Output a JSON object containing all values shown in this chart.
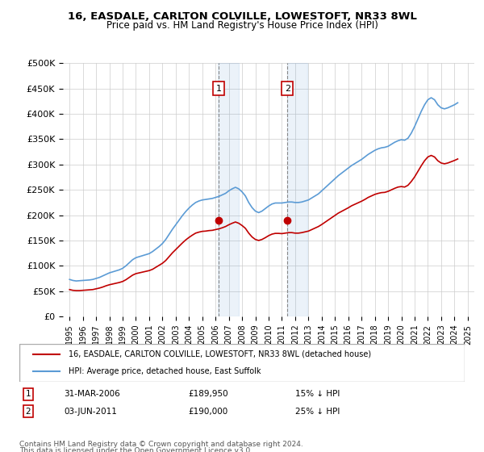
{
  "title": "16, EASDALE, CARLTON COLVILLE, LOWESTOFT, NR33 8WL",
  "subtitle": "Price paid vs. HM Land Registry's House Price Index (HPI)",
  "ylabel_ticks": [
    "£0",
    "£50K",
    "£100K",
    "£150K",
    "£200K",
    "£250K",
    "£300K",
    "£350K",
    "£400K",
    "£450K",
    "£500K"
  ],
  "ylim": [
    0,
    500000
  ],
  "ytick_vals": [
    0,
    50000,
    100000,
    150000,
    200000,
    250000,
    300000,
    350000,
    400000,
    450000,
    500000
  ],
  "hpi_color": "#5b9bd5",
  "price_color": "#c00000",
  "sale1_date_str": "31-MAR-2006",
  "sale1_year": 2006.25,
  "sale1_price": 189950,
  "sale2_date_str": "03-JUN-2011",
  "sale2_year": 2011.42,
  "sale2_price": 190000,
  "legend_label1": "16, EASDALE, CARLTON COLVILLE, LOWESTOFT, NR33 8WL (detached house)",
  "legend_label2": "HPI: Average price, detached house, East Suffolk",
  "annotation1_label": "15% ↓ HPI",
  "annotation2_label": "25% ↓ HPI",
  "footnote1": "Contains HM Land Registry data © Crown copyright and database right 2024.",
  "footnote2": "This data is licensed under the Open Government Licence v3.0.",
  "hpi_data": {
    "years": [
      1995.0,
      1995.25,
      1995.5,
      1995.75,
      1996.0,
      1996.25,
      1996.5,
      1996.75,
      1997.0,
      1997.25,
      1997.5,
      1997.75,
      1998.0,
      1998.25,
      1998.5,
      1998.75,
      1999.0,
      1999.25,
      1999.5,
      1999.75,
      2000.0,
      2000.25,
      2000.5,
      2000.75,
      2001.0,
      2001.25,
      2001.5,
      2001.75,
      2002.0,
      2002.25,
      2002.5,
      2002.75,
      2003.0,
      2003.25,
      2003.5,
      2003.75,
      2004.0,
      2004.25,
      2004.5,
      2004.75,
      2005.0,
      2005.25,
      2005.5,
      2005.75,
      2006.0,
      2006.25,
      2006.5,
      2006.75,
      2007.0,
      2007.25,
      2007.5,
      2007.75,
      2008.0,
      2008.25,
      2008.5,
      2008.75,
      2009.0,
      2009.25,
      2009.5,
      2009.75,
      2010.0,
      2010.25,
      2010.5,
      2010.75,
      2011.0,
      2011.25,
      2011.5,
      2011.75,
      2012.0,
      2012.25,
      2012.5,
      2012.75,
      2013.0,
      2013.25,
      2013.5,
      2013.75,
      2014.0,
      2014.25,
      2014.5,
      2014.75,
      2015.0,
      2015.25,
      2015.5,
      2015.75,
      2016.0,
      2016.25,
      2016.5,
      2016.75,
      2017.0,
      2017.25,
      2017.5,
      2017.75,
      2018.0,
      2018.25,
      2018.5,
      2018.75,
      2019.0,
      2019.25,
      2019.5,
      2019.75,
      2020.0,
      2020.25,
      2020.5,
      2020.75,
      2021.0,
      2021.25,
      2021.5,
      2021.75,
      2022.0,
      2022.25,
      2022.5,
      2022.75,
      2023.0,
      2023.25,
      2023.5,
      2023.75,
      2024.0,
      2024.25
    ],
    "values": [
      73000,
      71000,
      70000,
      70500,
      71000,
      71500,
      72000,
      73000,
      75000,
      77000,
      80000,
      83000,
      86000,
      88000,
      90000,
      92000,
      95000,
      100000,
      106000,
      112000,
      116000,
      118000,
      120000,
      122000,
      124000,
      128000,
      133000,
      138000,
      144000,
      152000,
      162000,
      172000,
      181000,
      190000,
      199000,
      207000,
      214000,
      220000,
      225000,
      228000,
      230000,
      231000,
      232000,
      233000,
      235000,
      237000,
      240000,
      243000,
      248000,
      252000,
      255000,
      252000,
      246000,
      238000,
      225000,
      215000,
      208000,
      205000,
      208000,
      213000,
      218000,
      222000,
      224000,
      224000,
      224000,
      225000,
      226000,
      226000,
      225000,
      225000,
      226000,
      228000,
      230000,
      234000,
      238000,
      242000,
      248000,
      254000,
      260000,
      266000,
      272000,
      278000,
      283000,
      288000,
      293000,
      298000,
      302000,
      306000,
      310000,
      315000,
      320000,
      324000,
      328000,
      331000,
      333000,
      334000,
      336000,
      340000,
      344000,
      347000,
      349000,
      348000,
      352000,
      362000,
      375000,
      390000,
      405000,
      418000,
      428000,
      432000,
      428000,
      418000,
      412000,
      410000,
      412000,
      415000,
      418000,
      422000
    ]
  },
  "price_data": {
    "years": [
      1995.0,
      1995.25,
      1995.5,
      1995.75,
      1996.0,
      1996.25,
      1996.5,
      1996.75,
      1997.0,
      1997.25,
      1997.5,
      1997.75,
      1998.0,
      1998.25,
      1998.5,
      1998.75,
      1999.0,
      1999.25,
      1999.5,
      1999.75,
      2000.0,
      2000.25,
      2000.5,
      2000.75,
      2001.0,
      2001.25,
      2001.5,
      2001.75,
      2002.0,
      2002.25,
      2002.5,
      2002.75,
      2003.0,
      2003.25,
      2003.5,
      2003.75,
      2004.0,
      2004.25,
      2004.5,
      2004.75,
      2005.0,
      2005.25,
      2005.5,
      2005.75,
      2006.0,
      2006.25,
      2006.5,
      2006.75,
      2007.0,
      2007.25,
      2007.5,
      2007.75,
      2008.0,
      2008.25,
      2008.5,
      2008.75,
      2009.0,
      2009.25,
      2009.5,
      2009.75,
      2010.0,
      2010.25,
      2010.5,
      2010.75,
      2011.0,
      2011.25,
      2011.5,
      2011.75,
      2012.0,
      2012.25,
      2012.5,
      2012.75,
      2013.0,
      2013.25,
      2013.5,
      2013.75,
      2014.0,
      2014.25,
      2014.5,
      2014.75,
      2015.0,
      2015.25,
      2015.5,
      2015.75,
      2016.0,
      2016.25,
      2016.5,
      2016.75,
      2017.0,
      2017.25,
      2017.5,
      2017.75,
      2018.0,
      2018.25,
      2018.5,
      2018.75,
      2019.0,
      2019.25,
      2019.5,
      2019.75,
      2020.0,
      2020.25,
      2020.5,
      2020.75,
      2021.0,
      2021.25,
      2021.5,
      2021.75,
      2022.0,
      2022.25,
      2022.5,
      2022.75,
      2023.0,
      2023.25,
      2023.5,
      2023.75,
      2024.0,
      2024.25
    ],
    "values": [
      53000,
      51500,
      51000,
      51000,
      51500,
      52000,
      52500,
      53000,
      54500,
      56000,
      58000,
      60500,
      62500,
      64000,
      65500,
      67000,
      69000,
      72500,
      77000,
      81500,
      84500,
      86000,
      87500,
      89000,
      90500,
      93000,
      97000,
      101000,
      105000,
      110500,
      118000,
      125500,
      132000,
      138500,
      145000,
      151000,
      156000,
      160500,
      164500,
      166500,
      168000,
      168500,
      169500,
      170000,
      171500,
      173000,
      175000,
      177500,
      181000,
      184000,
      186500,
      184000,
      179500,
      174000,
      164500,
      157000,
      152000,
      150000,
      152000,
      155500,
      159500,
      162500,
      164000,
      164000,
      163500,
      164500,
      165500,
      165500,
      164500,
      164500,
      165500,
      167000,
      168500,
      171500,
      174500,
      177500,
      181500,
      186000,
      190500,
      195000,
      199500,
      204000,
      207500,
      211000,
      214500,
      218500,
      221500,
      224500,
      227500,
      231000,
      235000,
      238000,
      241000,
      243000,
      244500,
      245000,
      247000,
      250000,
      253000,
      255500,
      256500,
      255500,
      259000,
      266500,
      275500,
      286500,
      297500,
      307500,
      315000,
      318000,
      315000,
      307500,
      303000,
      301500,
      303000,
      305500,
      308000,
      311000
    ]
  }
}
